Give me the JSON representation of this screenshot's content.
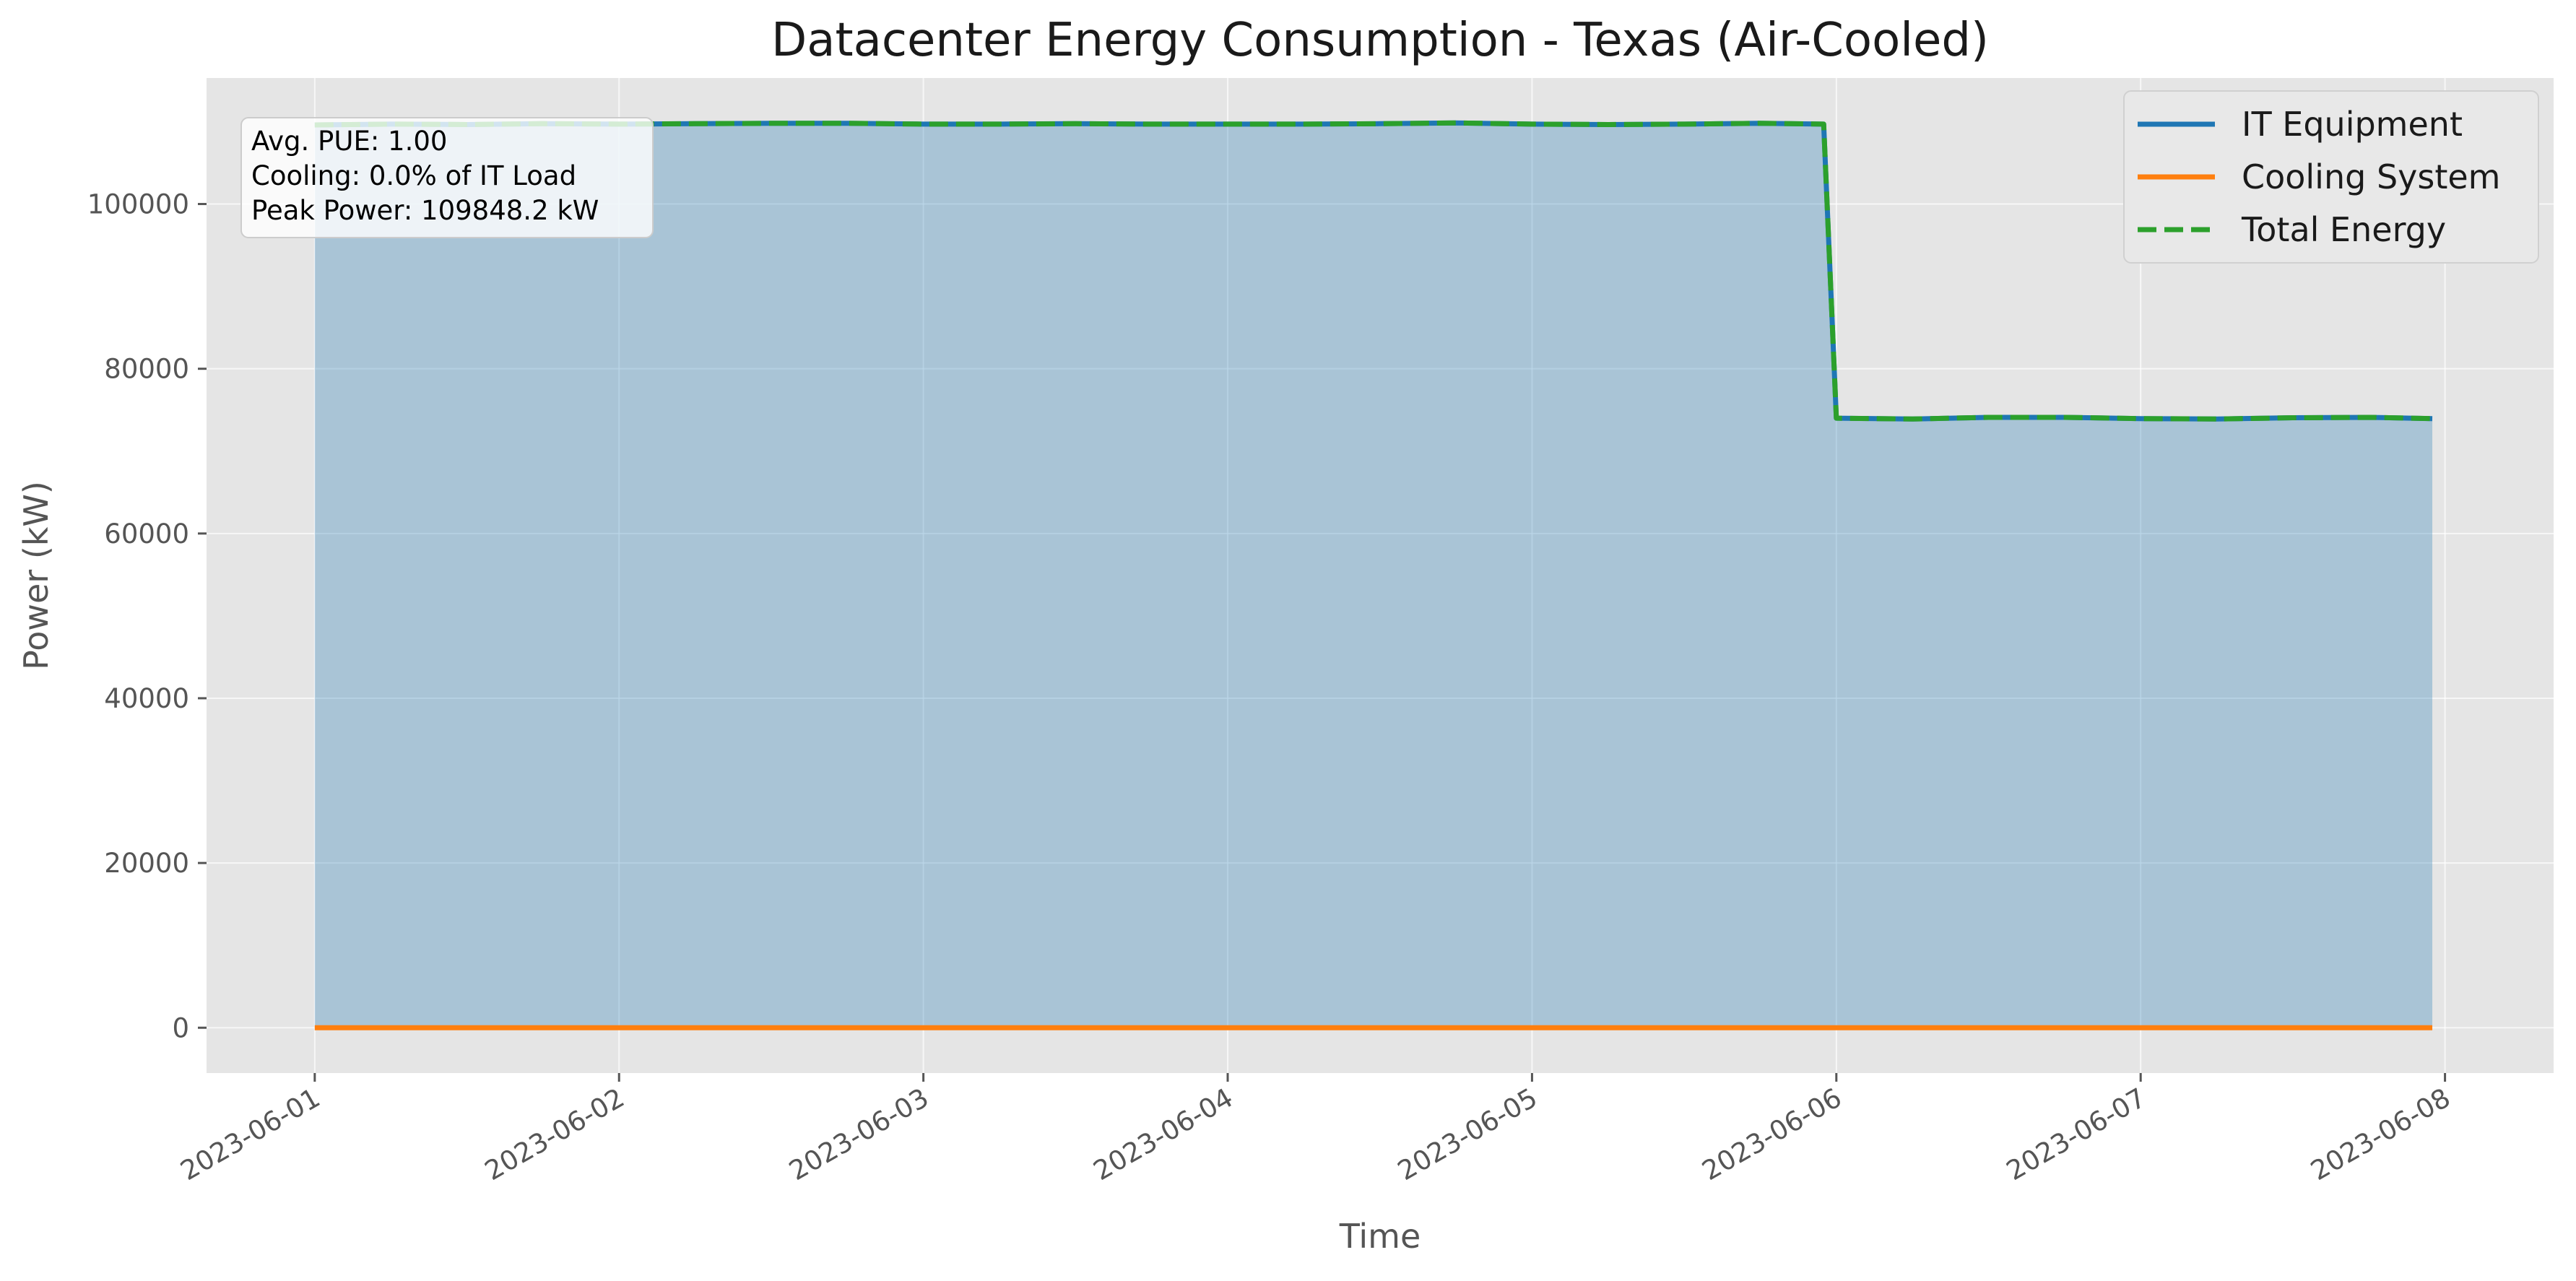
{
  "chart_data": {
    "type": "line",
    "title": "Datacenter Energy Consumption - Texas (Air-Cooled)",
    "xlabel": "Time",
    "ylabel": "Power (kW)",
    "x_ticks": [
      "2023-06-01",
      "2023-06-02",
      "2023-06-03",
      "2023-06-04",
      "2023-06-05",
      "2023-06-06",
      "2023-06-07",
      "2023-06-08"
    ],
    "y_ticks": [
      0,
      20000,
      40000,
      60000,
      80000,
      100000
    ],
    "xlim": [
      "2023-05-31 15:28",
      "2023-06-08 08:34"
    ],
    "ylim": [
      -5500,
      115300
    ],
    "grid": true,
    "legend_position": "top-right",
    "x": [
      "2023-06-01 00:00",
      "2023-06-01 06:00",
      "2023-06-01 12:00",
      "2023-06-01 18:00",
      "2023-06-02 00:00",
      "2023-06-02 06:00",
      "2023-06-02 12:00",
      "2023-06-02 18:00",
      "2023-06-03 00:00",
      "2023-06-03 06:00",
      "2023-06-03 12:00",
      "2023-06-03 18:00",
      "2023-06-04 00:00",
      "2023-06-04 06:00",
      "2023-06-04 12:00",
      "2023-06-04 18:00",
      "2023-06-05 00:00",
      "2023-06-05 06:00",
      "2023-06-05 12:00",
      "2023-06-05 18:00",
      "2023-06-05 23:00",
      "2023-06-06 00:00",
      "2023-06-06 06:00",
      "2023-06-06 12:00",
      "2023-06-06 18:00",
      "2023-06-07 00:00",
      "2023-06-07 06:00",
      "2023-06-07 12:00",
      "2023-06-07 18:00",
      "2023-06-07 23:00"
    ],
    "series": [
      {
        "name": "IT Equipment",
        "color": "#1f77b4",
        "style": "solid",
        "fill": true,
        "fill_color": "#1f77b4",
        "values": [
          109600,
          109700,
          109650,
          109750,
          109700,
          109750,
          109800,
          109800,
          109700,
          109700,
          109750,
          109700,
          109700,
          109700,
          109750,
          109848.2,
          109700,
          109650,
          109700,
          109800,
          109700,
          74000,
          73900,
          74100,
          74100,
          73950,
          73900,
          74050,
          74100,
          73950
        ]
      },
      {
        "name": "Cooling System",
        "color": "#ff7f0e",
        "style": "solid",
        "values": [
          0,
          0,
          0,
          0,
          0,
          0,
          0,
          0,
          0,
          0,
          0,
          0,
          0,
          0,
          0,
          0,
          0,
          0,
          0,
          0,
          0,
          0,
          0,
          0,
          0,
          0,
          0,
          0,
          0,
          0
        ]
      },
      {
        "name": "Total Energy",
        "color": "#2ca02c",
        "style": "dashed",
        "values": [
          109600,
          109700,
          109650,
          109750,
          109700,
          109750,
          109800,
          109800,
          109700,
          109700,
          109750,
          109700,
          109700,
          109700,
          109750,
          109848.2,
          109700,
          109650,
          109700,
          109800,
          109700,
          74000,
          73900,
          74100,
          74100,
          73950,
          73900,
          74050,
          74100,
          73950
        ]
      }
    ],
    "annotation": {
      "lines": [
        "Avg. PUE: 1.00",
        "Cooling: 0.0% of IT Load",
        "Peak Power: 109848.2 kW"
      ]
    }
  }
}
